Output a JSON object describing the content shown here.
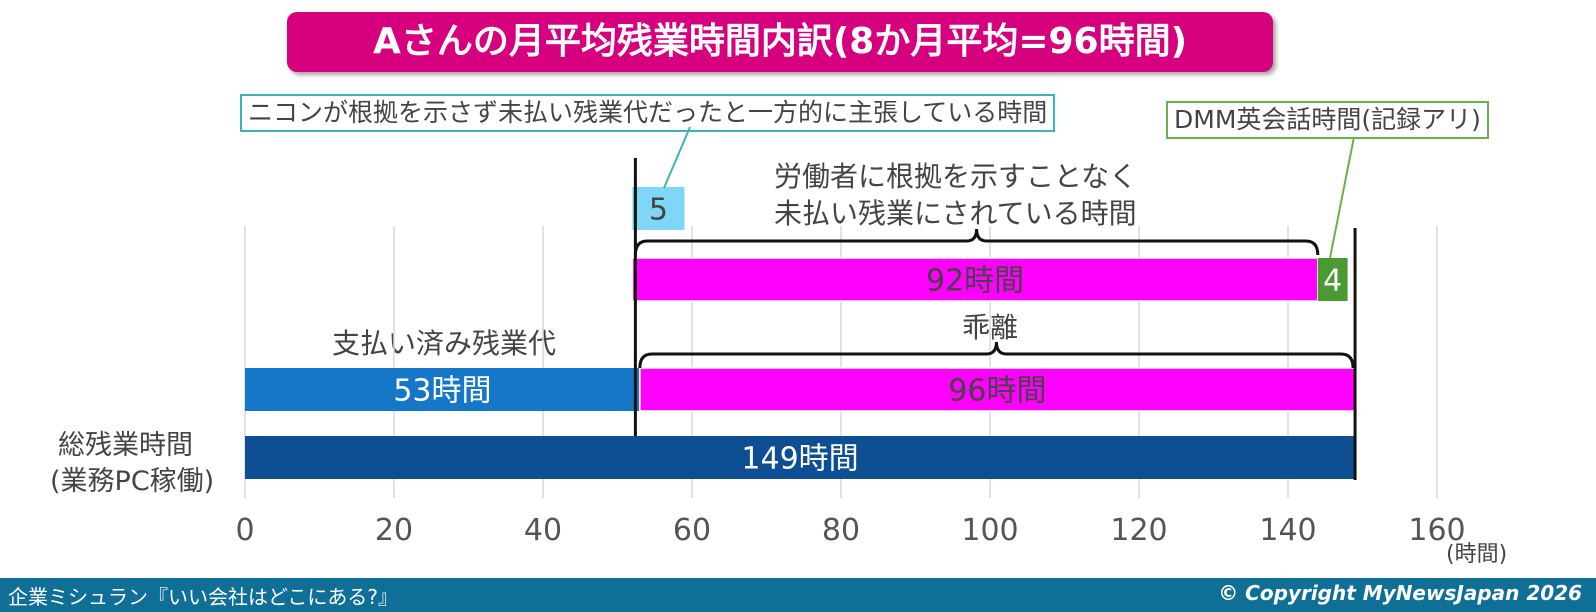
{
  "title": "Aさんの月平均残業時間内訳(8か月平均=96時間)",
  "callouts": {
    "nikon_claim": "ニコンが根拠を示さず未払い残業代だったと一方的に主張している時間",
    "dmm": "DMM英会話時間(記録アリ)"
  },
  "notes": {
    "unpaid_line1": "労働者に根拠を示すことなく",
    "unpaid_line2": "未払い残業にされている時間",
    "paid": "支払い済み残業代",
    "gap": "乖離"
  },
  "categories": {
    "total_line1": "総残業時間",
    "total_line2": "(業務PC稼働)"
  },
  "unit": "(時間)",
  "footer": {
    "left": "企業ミシュラン『いい会社はどこにある?』",
    "right": "© Copyright MyNewsJapan 2026"
  },
  "colors": {
    "title_bg": "#d6007e",
    "magenta": "#ff00ff",
    "light_blue": "#7fd6f7",
    "green": "#4a9a32",
    "mid_blue": "#1677c9",
    "dark_blue": "#0d4f92",
    "footer_bg": "#0f6f97"
  },
  "chart_data": {
    "type": "bar",
    "orientation": "horizontal",
    "stacked": true,
    "xlim": [
      0,
      160
    ],
    "xticks": [
      0,
      20,
      40,
      60,
      80,
      100,
      120,
      140,
      160
    ],
    "grid": true,
    "rows": [
      {
        "segments": [
          {
            "start": 52,
            "value": 5,
            "label": "5",
            "color": "#7fd6f7"
          }
        ]
      },
      {
        "segments": [
          {
            "start": 52,
            "value": 92,
            "label": "92時間",
            "color": "#ff00ff"
          },
          {
            "start": 144,
            "value": 4,
            "label": "4",
            "color": "#4a9a32"
          }
        ]
      },
      {
        "segments": [
          {
            "start": 0,
            "value": 53,
            "label": "53時間",
            "color": "#1677c9"
          },
          {
            "start": 53,
            "value": 96,
            "label": "96時間",
            "color": "#ff00ff"
          }
        ]
      },
      {
        "category": "総残業時間(業務PC稼働)",
        "segments": [
          {
            "start": 0,
            "value": 149,
            "label": "149時間",
            "color": "#0d4f92"
          }
        ]
      }
    ]
  }
}
